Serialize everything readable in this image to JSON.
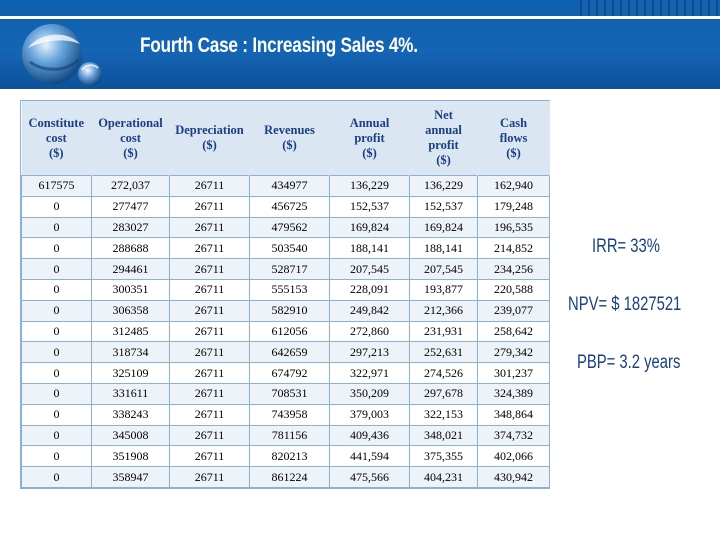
{
  "slide": {
    "title": "Fourth Case : Increasing Sales  4%."
  },
  "colors": {
    "header_blue": "#1565b5",
    "table_header_bg": "#dbe6f3",
    "table_text_blue": "#1a3f82",
    "row_alt": "#eef3fa"
  },
  "table": {
    "headers": [
      [
        "Constitute",
        "cost",
        "($)"
      ],
      [
        "Operational",
        "cost",
        "($)"
      ],
      [
        "Depreciation",
        "($)"
      ],
      [
        "Revenues",
        "($)"
      ],
      [
        "Annual",
        "profit",
        "($)"
      ],
      [
        "Net",
        "annual",
        "profit",
        "($)"
      ],
      [
        "Cash",
        "flows",
        "($)"
      ]
    ],
    "rows": [
      [
        "617575",
        "272,037",
        "26711",
        "434977",
        "136,229",
        "136,229",
        "162,940"
      ],
      [
        "0",
        "277477",
        "26711",
        "456725",
        "152,537",
        "152,537",
        "179,248"
      ],
      [
        "0",
        "283027",
        "26711",
        "479562",
        "169,824",
        "169,824",
        "196,535"
      ],
      [
        "0",
        "288688",
        "26711",
        "503540",
        "188,141",
        "188,141",
        "214,852"
      ],
      [
        "0",
        "294461",
        "26711",
        "528717",
        "207,545",
        "207,545",
        "234,256"
      ],
      [
        "0",
        "300351",
        "26711",
        "555153",
        "228,091",
        "193,877",
        "220,588"
      ],
      [
        "0",
        "306358",
        "26711",
        "582910",
        "249,842",
        "212,366",
        "239,077"
      ],
      [
        "0",
        "312485",
        "26711",
        "612056",
        "272,860",
        "231,931",
        "258,642"
      ],
      [
        "0",
        "318734",
        "26711",
        "642659",
        "297,213",
        "252,631",
        "279,342"
      ],
      [
        "0",
        "325109",
        "26711",
        "674792",
        "322,971",
        "274,526",
        "301,237"
      ],
      [
        "0",
        "331611",
        "26711",
        "708531",
        "350,209",
        "297,678",
        "324,389"
      ],
      [
        "0",
        "338243",
        "26711",
        "743958",
        "379,003",
        "322,153",
        "348,864"
      ],
      [
        "0",
        "345008",
        "26711",
        "781156",
        "409,436",
        "348,021",
        "374,732"
      ],
      [
        "0",
        "351908",
        "26711",
        "820213",
        "441,594",
        "375,355",
        "402,066"
      ],
      [
        "0",
        "358947",
        "26711",
        "861224",
        "475,566",
        "404,231",
        "430,942"
      ]
    ]
  },
  "metrics": {
    "irr": "IRR= 33%",
    "npv": "NPV= $ 1827521",
    "pbp": "PBP= 3.2 years"
  }
}
